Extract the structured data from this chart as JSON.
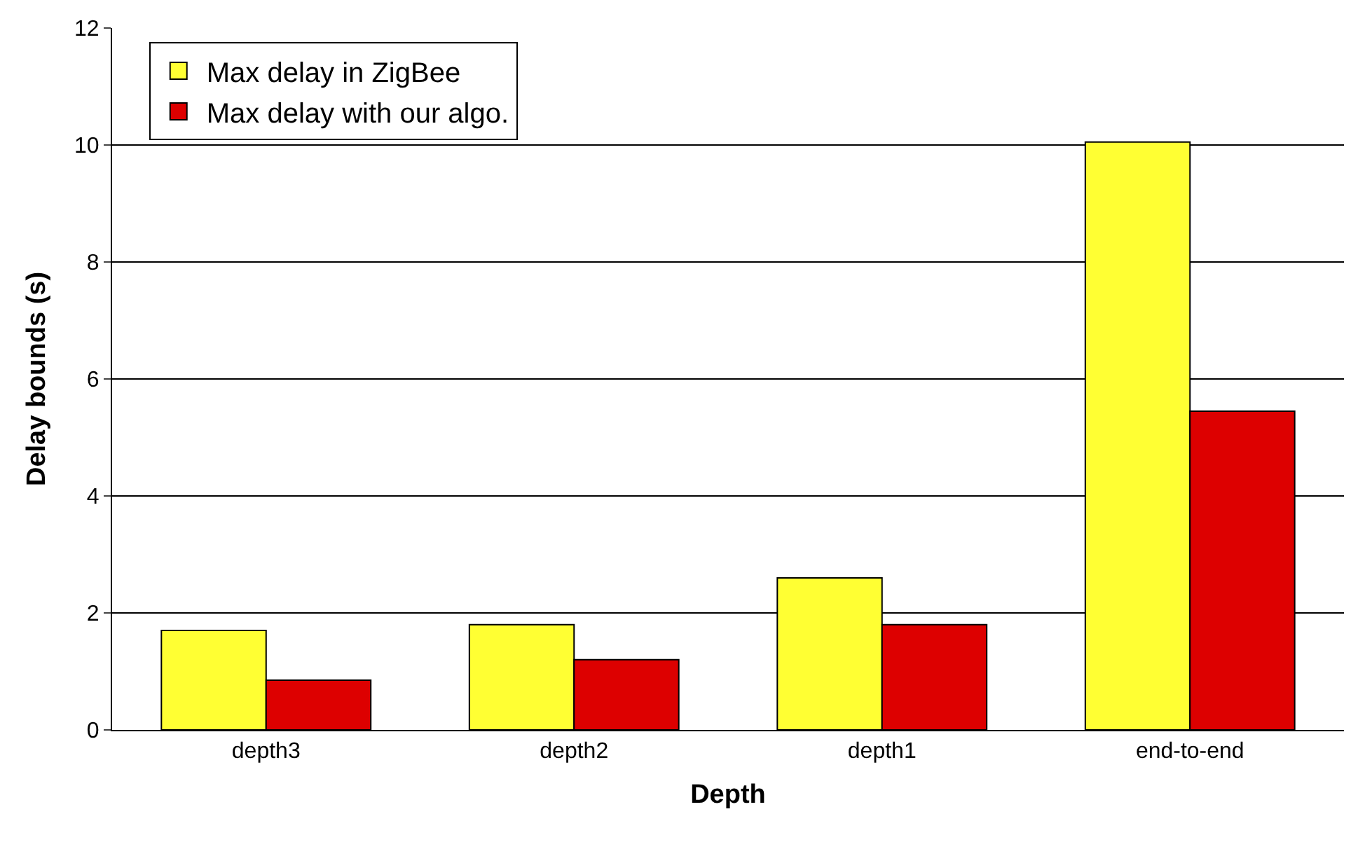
{
  "chart_data": {
    "type": "bar",
    "xlabel": "Depth",
    "ylabel": "Delay bounds (s)",
    "categories": [
      "depth3",
      "depth2",
      "depth1",
      "end-to-end"
    ],
    "series": [
      {
        "name": "Max delay in ZigBee",
        "color": "#ffff33",
        "values": [
          1.7,
          1.8,
          2.6,
          10.05
        ]
      },
      {
        "name": "Max delay with our algo.",
        "color": "#dd0000",
        "values": [
          0.85,
          1.2,
          1.8,
          5.45
        ]
      }
    ],
    "ylim": [
      0,
      12
    ],
    "yticks": [
      0,
      2,
      4,
      6,
      8,
      10,
      12
    ],
    "grid": "y",
    "legend": "top left"
  }
}
